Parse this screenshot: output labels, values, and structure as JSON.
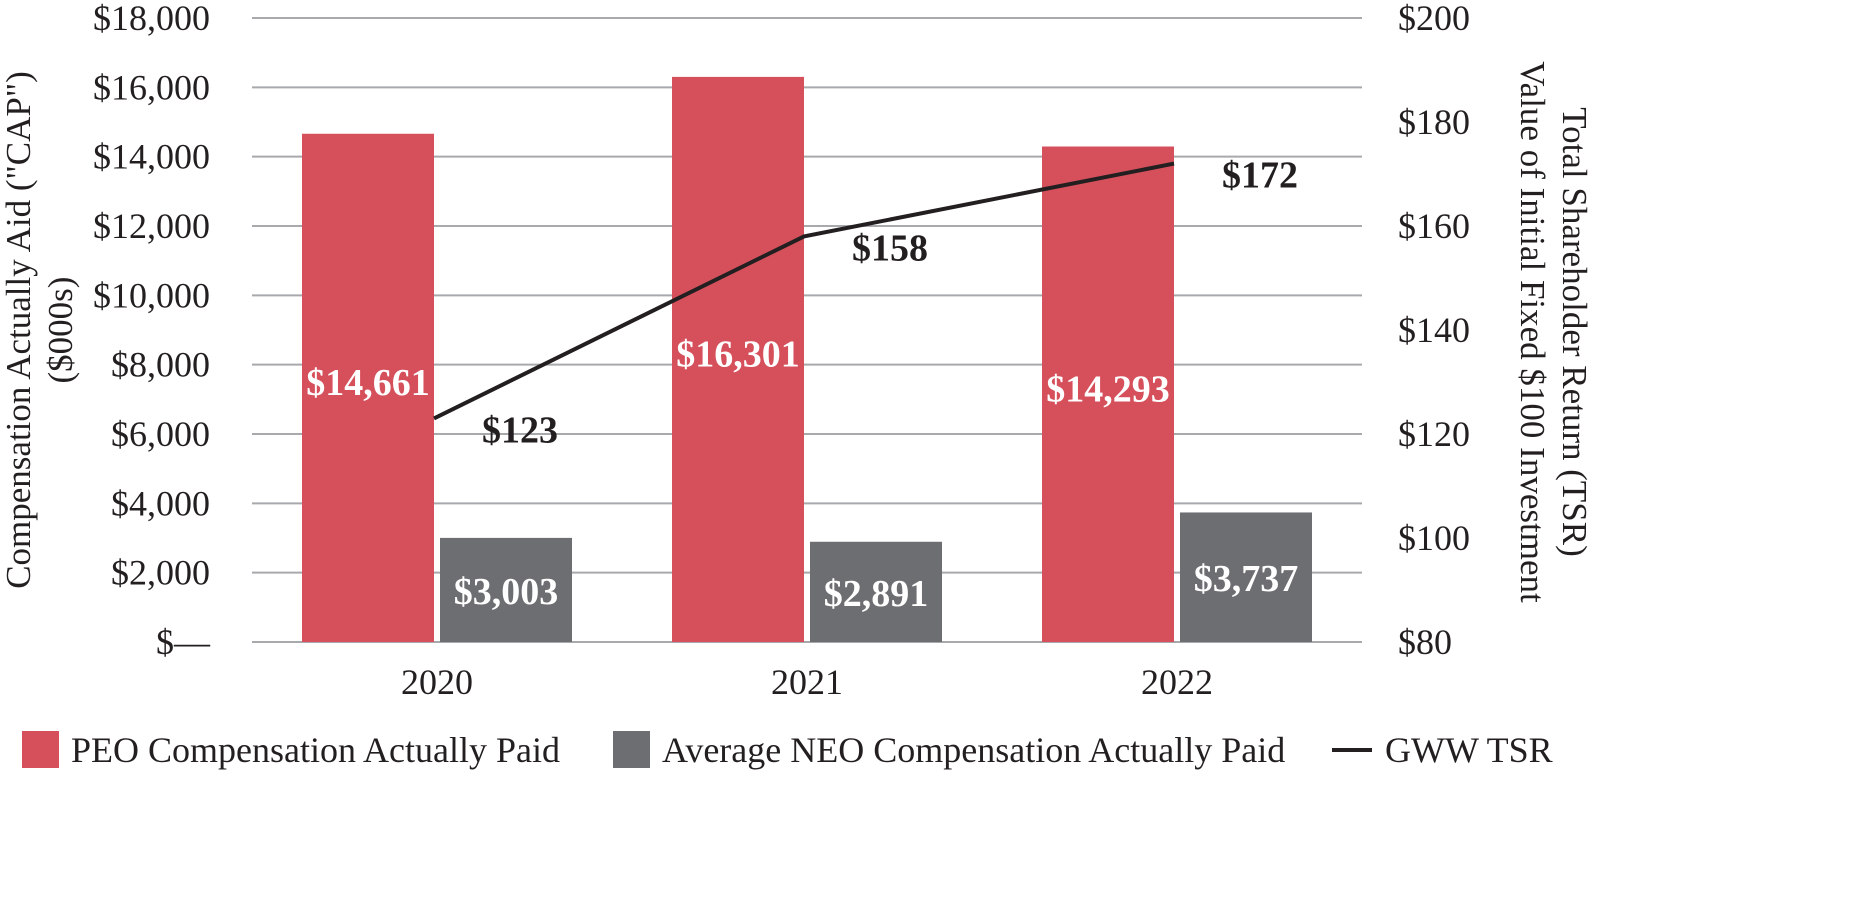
{
  "chart_data": {
    "type": "bar",
    "categories": [
      "2020",
      "2021",
      "2022"
    ],
    "series": [
      {
        "name": "PEO Compensation Actually Paid",
        "axis": "left",
        "values": [
          14661,
          16301,
          14293
        ],
        "labels": [
          "$14,661",
          "$16,301",
          "$14,293"
        ],
        "color": "#d6505c"
      },
      {
        "name": "Average NEO Compensation Actually Paid",
        "axis": "left",
        "values": [
          3003,
          2891,
          3737
        ],
        "labels": [
          "$3,003",
          "$2,891",
          "$3,737"
        ],
        "color": "#6d6e71"
      },
      {
        "name": "GWW TSR",
        "type": "line",
        "axis": "right",
        "values": [
          123,
          158,
          172
        ],
        "labels": [
          "$123",
          "$158",
          "$172"
        ],
        "color": "#231f20"
      }
    ],
    "ylabel": [
      "Compensation Actually Aid (\"CAP\")",
      "($000s)"
    ],
    "ylim": [
      0,
      18000
    ],
    "yticks": [
      "$—",
      "$2,000",
      "$4,000",
      "$6,000",
      "$8,000",
      "$10,000",
      "$12,000",
      "$14,000",
      "$16,000",
      "$18,000"
    ],
    "y2label": [
      "Total Shareholder Return (TSR)",
      "Value of Initial Fixed $100 Investment"
    ],
    "y2lim": [
      80,
      200
    ],
    "y2ticks": [
      "$80",
      "$100",
      "$120",
      "$140",
      "$160",
      "$180",
      "$200"
    ],
    "grid": true,
    "legend_position": "bottom"
  }
}
